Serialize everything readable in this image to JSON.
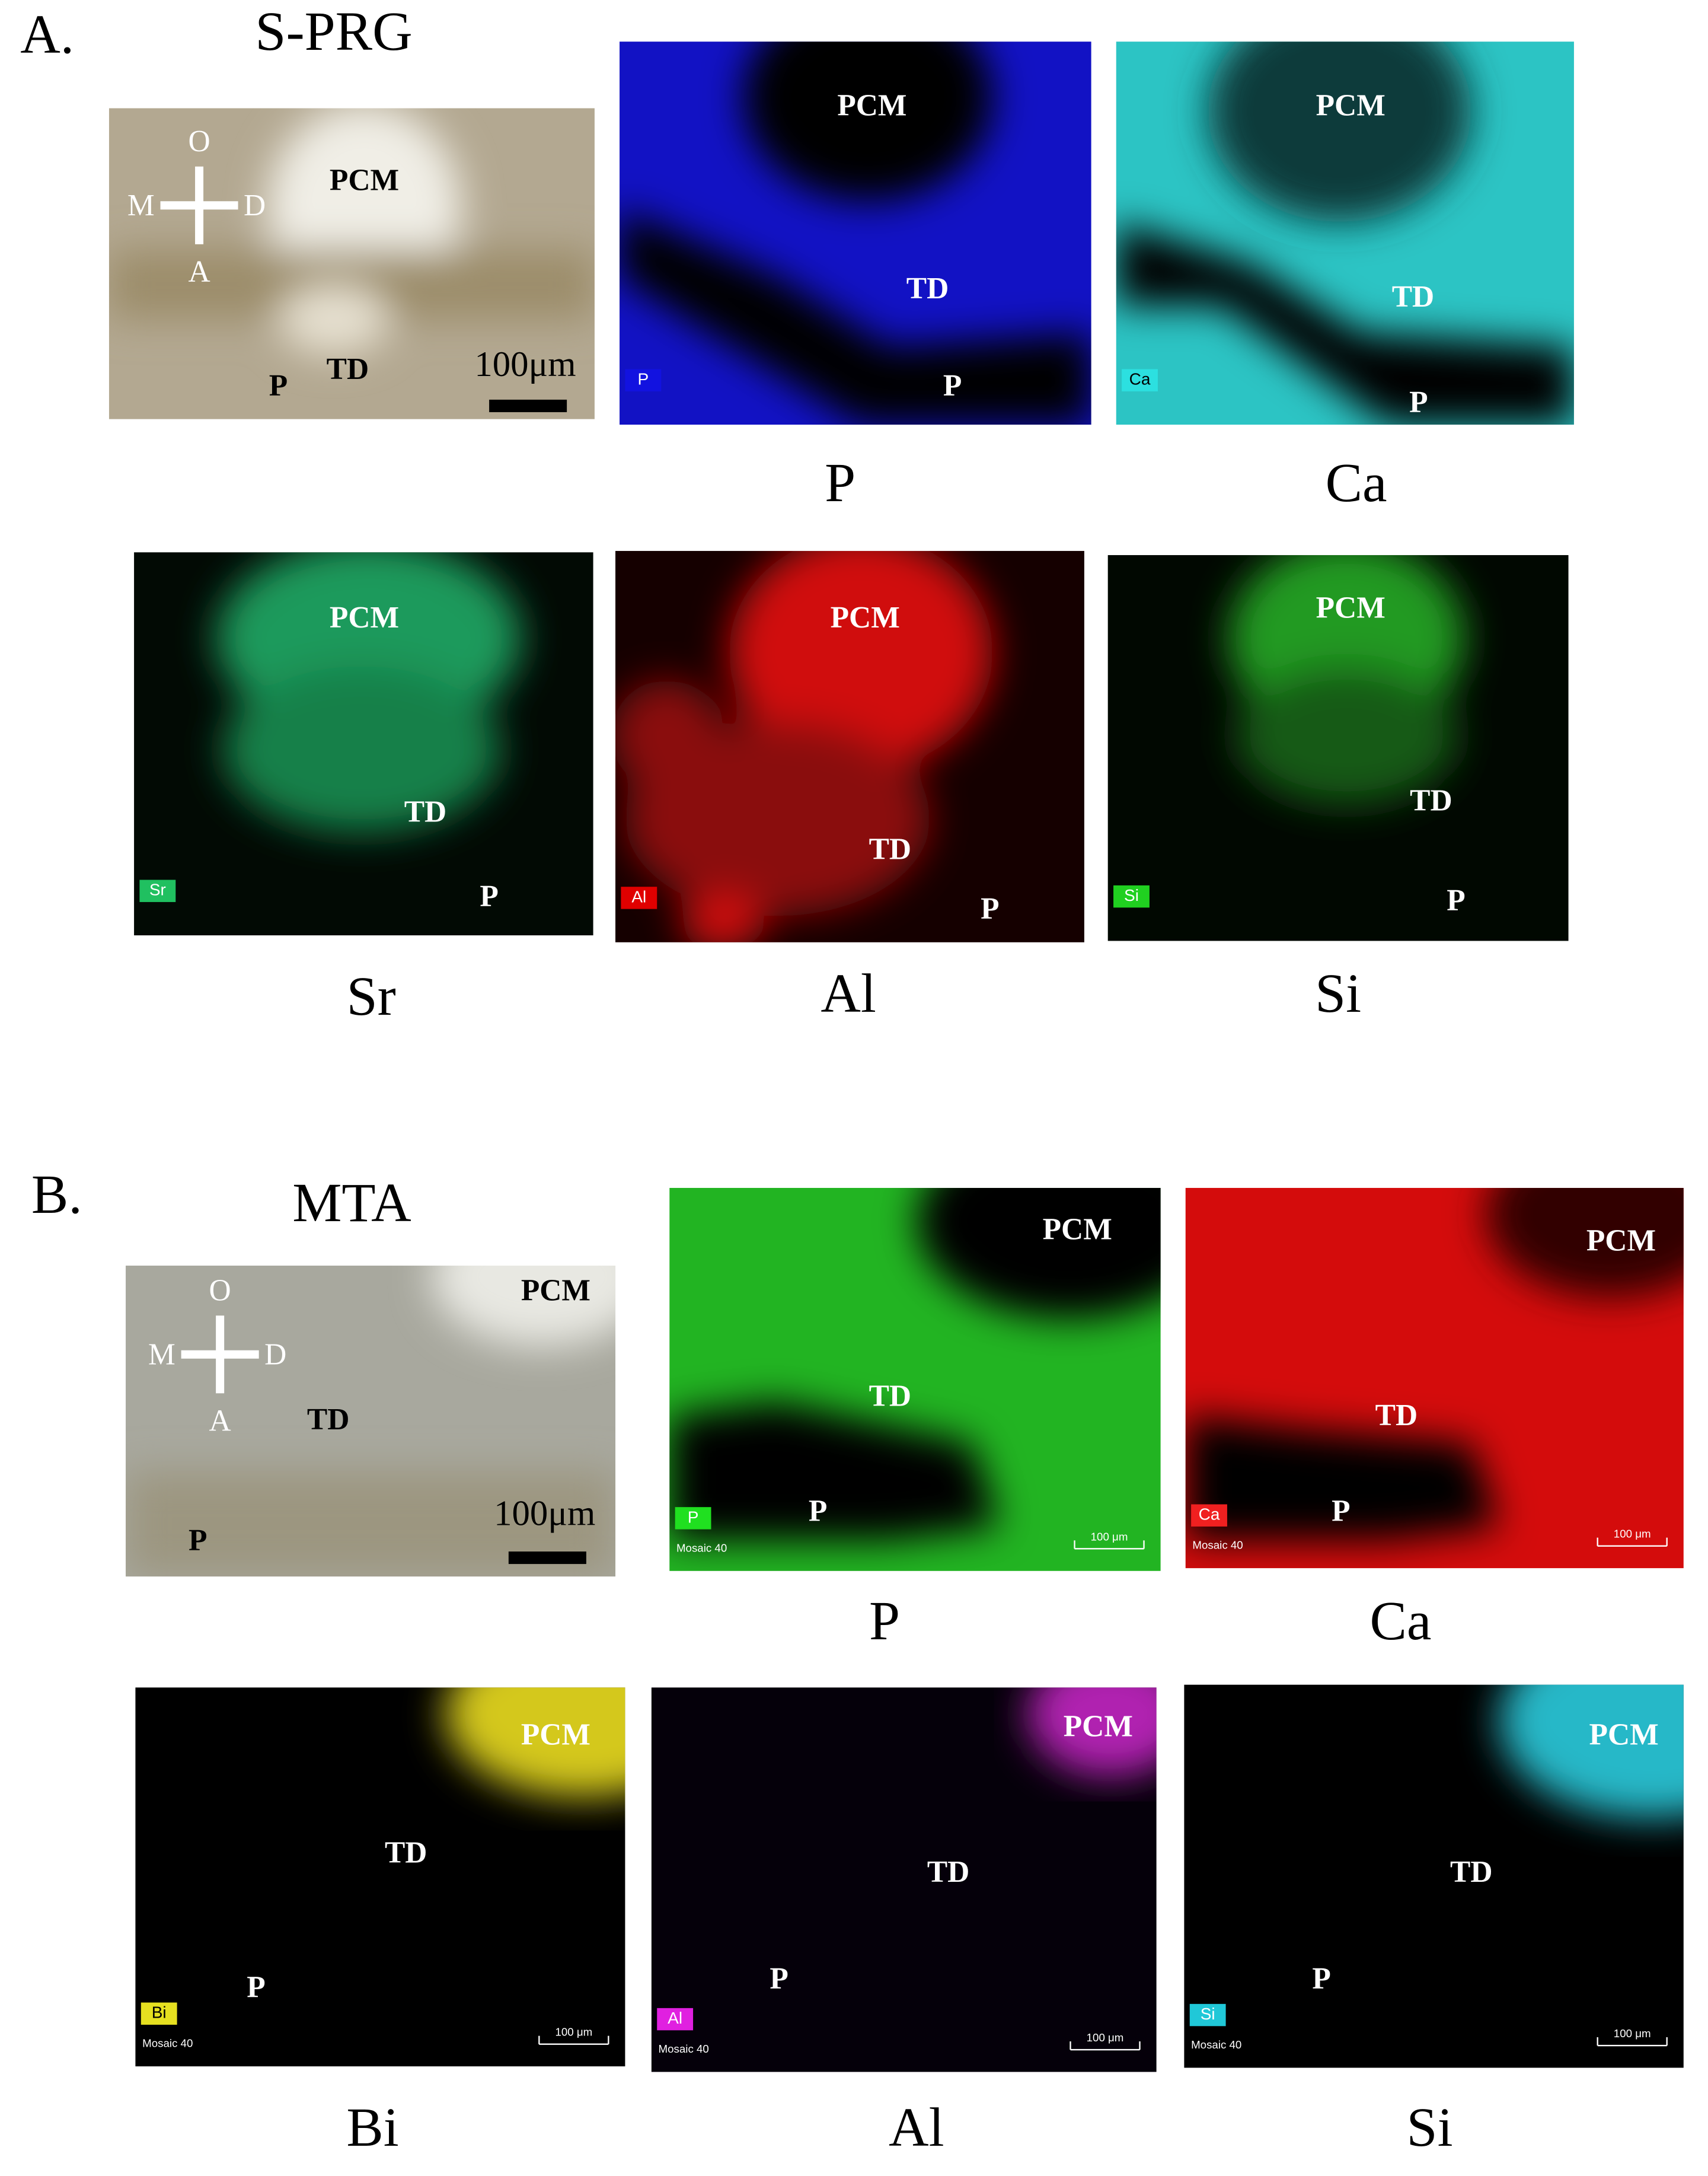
{
  "panels": [
    {
      "label": "A.",
      "title": "S-PRG",
      "photo": {
        "orientation": [
          "O",
          "M",
          "D",
          "A"
        ],
        "annotations": [
          "PCM",
          "TD",
          "P"
        ],
        "scale_bar": "100μm"
      },
      "maps": [
        {
          "element_tag": "P",
          "annotations": [
            "PCM",
            "TD",
            "P"
          ],
          "caption": "P"
        },
        {
          "element_tag": "Ca",
          "annotations": [
            "PCM",
            "TD",
            "P"
          ],
          "caption": "Ca"
        },
        {
          "element_tag": "Sr",
          "annotations": [
            "PCM",
            "TD",
            "P"
          ],
          "caption": "Sr"
        },
        {
          "element_tag": "Al",
          "annotations": [
            "PCM",
            "TD",
            "P"
          ],
          "caption": "Al"
        },
        {
          "element_tag": "Si",
          "annotations": [
            "PCM",
            "TD",
            "P"
          ],
          "caption": "Si"
        }
      ]
    },
    {
      "label": "B.",
      "title": "MTA",
      "photo": {
        "orientation": [
          "O",
          "M",
          "D",
          "A"
        ],
        "annotations": [
          "PCM",
          "TD",
          "P"
        ],
        "scale_bar": "100μm"
      },
      "maps": [
        {
          "element_tag": "P",
          "annotations": [
            "PCM",
            "TD",
            "P"
          ],
          "caption": "P",
          "mosaic": "Mosaic 40",
          "scale": "100 μm"
        },
        {
          "element_tag": "Ca",
          "annotations": [
            "PCM",
            "TD",
            "P"
          ],
          "caption": "Ca",
          "mosaic": "Mosaic 40",
          "scale": "100 μm"
        },
        {
          "element_tag": "Bi",
          "annotations": [
            "PCM",
            "TD",
            "P"
          ],
          "caption": "Bi",
          "mosaic": "Mosaic 40",
          "scale": "100 μm"
        },
        {
          "element_tag": "Al",
          "annotations": [
            "PCM",
            "TD",
            "P"
          ],
          "caption": "Al",
          "mosaic": "Mosaic 40",
          "scale": "100 μm"
        },
        {
          "element_tag": "Si",
          "annotations": [
            "PCM",
            "TD",
            "P"
          ],
          "caption": "Si",
          "mosaic": "Mosaic 40",
          "scale": "100 μm"
        }
      ]
    }
  ]
}
